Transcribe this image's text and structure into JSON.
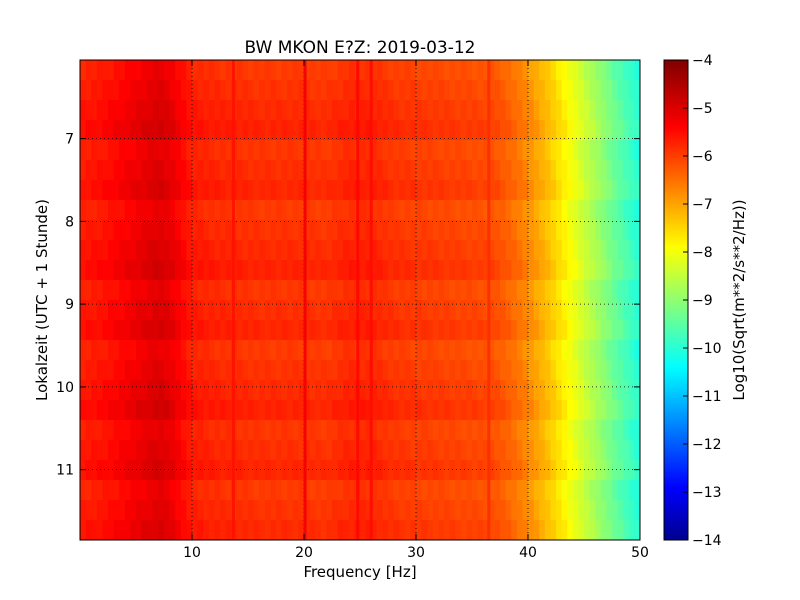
{
  "chart_data": {
    "type": "heatmap",
    "title": "BW MKON E?Z: 2019-03-12",
    "xlabel": "Frequency [Hz]",
    "ylabel": "Lokalzeit (UTC + 1 Stunde)",
    "xlim": [
      0,
      50
    ],
    "ylim": [
      11.85,
      6.05
    ],
    "y_inverted": true,
    "x_ticks": [
      10,
      20,
      30,
      40,
      50
    ],
    "x_tick_labels": [
      "10",
      "20",
      "30",
      "40",
      "50"
    ],
    "y_ticks": [
      7,
      8,
      9,
      10,
      11
    ],
    "y_tick_labels": [
      "7",
      "8",
      "9",
      "10",
      "11"
    ],
    "grid": true,
    "colormap": "jet",
    "colorbar": {
      "label": "Log10(Sqrt(m**2/s**2/Hz))",
      "range": [
        -14,
        -4
      ],
      "ticks": [
        -4,
        -5,
        -6,
        -7,
        -8,
        -9,
        -10,
        -11,
        -12,
        -13,
        -14
      ],
      "tick_labels": [
        "−4",
        "−5",
        "−6",
        "−7",
        "−8",
        "−9",
        "−10",
        "−11",
        "−12",
        "−13",
        "−14"
      ]
    },
    "frequency_profile": {
      "frequency_hz": [
        0,
        2,
        4,
        6,
        7,
        8,
        9,
        10,
        12,
        14,
        16,
        18,
        20,
        22,
        24,
        26,
        28,
        30,
        32,
        34,
        36,
        37,
        38,
        39,
        40,
        41,
        42,
        43,
        44,
        45,
        46,
        47,
        48,
        49,
        50
      ],
      "log10_value": [
        -5.5,
        -5.4,
        -5.2,
        -5.0,
        -4.9,
        -5.0,
        -5.25,
        -5.5,
        -5.6,
        -5.65,
        -5.7,
        -5.7,
        -5.7,
        -5.75,
        -5.6,
        -5.6,
        -5.75,
        -5.8,
        -5.85,
        -5.9,
        -5.95,
        -6.0,
        -6.15,
        -6.35,
        -6.6,
        -6.9,
        -7.2,
        -7.55,
        -7.9,
        -8.25,
        -8.6,
        -8.95,
        -9.3,
        -9.6,
        -9.9
      ]
    },
    "line_features": [
      {
        "frequency_hz": 20.1,
        "delta": 0.55
      },
      {
        "frequency_hz": 13.7,
        "delta": 0.25
      },
      {
        "frequency_hz": 24.8,
        "delta": 0.3
      },
      {
        "frequency_hz": 26.0,
        "delta": 0.25
      },
      {
        "frequency_hz": 36.5,
        "delta": 0.3
      }
    ]
  }
}
